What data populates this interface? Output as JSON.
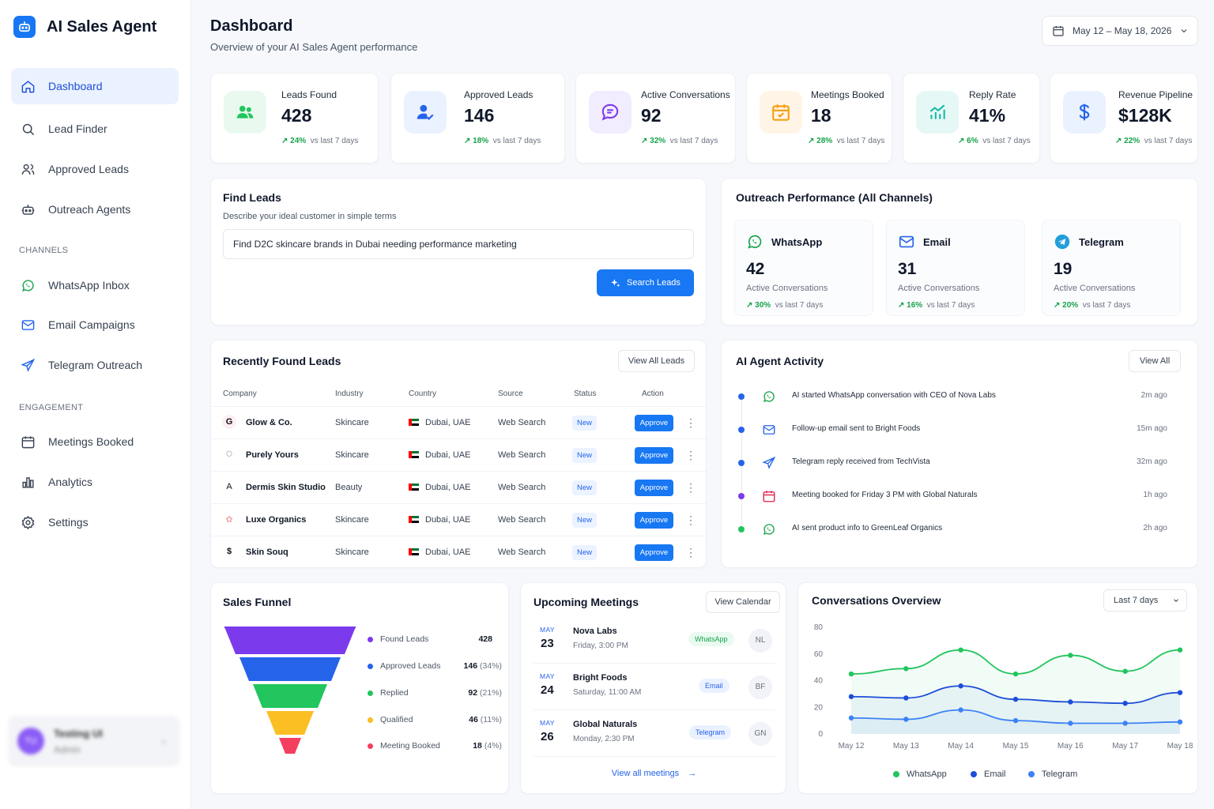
{
  "app": {
    "name": "AI Sales Agent"
  },
  "sidebar": {
    "items": [
      {
        "label": "Dashboard"
      },
      {
        "label": "Lead Finder"
      },
      {
        "label": "Approved Leads"
      },
      {
        "label": "Outreach Agents"
      }
    ],
    "channels_heading": "CHANNELS",
    "channels": [
      {
        "label": "WhatsApp Inbox"
      },
      {
        "label": "Email Campaigns"
      },
      {
        "label": "Telegram Outreach"
      }
    ],
    "engagement_heading": "ENGAGEMENT",
    "engagement": [
      {
        "label": "Meetings Booked"
      },
      {
        "label": "Analytics"
      },
      {
        "label": "Settings"
      }
    ],
    "user": {
      "initials": "TU",
      "name": "Testing UI",
      "role": "Admin"
    }
  },
  "header": {
    "title": "Dashboard",
    "subtitle": "Overview of your AI Sales Agent performance",
    "date_range": "May 12 – May 18, 2026"
  },
  "stats": [
    {
      "label": "Leads Found",
      "value": "428",
      "change": "24%",
      "compare": "vs last 7 days",
      "color": "#22c55e"
    },
    {
      "label": "Approved Leads",
      "value": "146",
      "change": "18%",
      "compare": "vs last 7 days",
      "color": "#2563eb"
    },
    {
      "label": "Active Conversations",
      "value": "92",
      "change": "32%",
      "compare": "vs last 7 days",
      "color": "#7c3aed"
    },
    {
      "label": "Meetings Booked",
      "value": "18",
      "change": "28%",
      "compare": "vs last 7 days",
      "color": "#f59e0b"
    },
    {
      "label": "Reply Rate",
      "value": "41%",
      "change": "6%",
      "compare": "vs last 7 days",
      "color": "#14b8a6"
    },
    {
      "label": "Revenue Pipeline",
      "value": "$128K",
      "change": "22%",
      "compare": "vs last 7 days",
      "color": "#2563eb"
    }
  ],
  "find_leads": {
    "title": "Find Leads",
    "subtitle": "Describe your ideal customer in simple terms",
    "query": "Find D2C skincare brands in Dubai needing performance marketing",
    "button": "Search Leads"
  },
  "outreach": {
    "title": "Outreach Performance (All Channels)",
    "channels": [
      {
        "name": "WhatsApp",
        "value": "42",
        "sub": "Active Conversations",
        "change": "30%",
        "compare": "vs last 7 days"
      },
      {
        "name": "Email",
        "value": "31",
        "sub": "Active Conversations",
        "change": "16%",
        "compare": "vs last 7 days"
      },
      {
        "name": "Telegram",
        "value": "19",
        "sub": "Active Conversations",
        "change": "20%",
        "compare": "vs last 7 days"
      }
    ]
  },
  "leads": {
    "title": "Recently Found Leads",
    "view_all": "View All Leads",
    "columns": [
      "Company",
      "Industry",
      "Country",
      "Source",
      "Status",
      "Action"
    ],
    "rows": [
      {
        "company": "Glow & Co.",
        "logo": "G",
        "industry": "Skincare",
        "country": "Dubai, UAE",
        "source": "Web Search",
        "status": "New",
        "action": "Approve"
      },
      {
        "company": "Purely Yours",
        "logo": "○",
        "industry": "Skincare",
        "country": "Dubai, UAE",
        "source": "Web Search",
        "status": "New",
        "action": "Approve"
      },
      {
        "company": "Dermis Skin Studio",
        "logo": "A",
        "industry": "Beauty",
        "country": "Dubai, UAE",
        "source": "Web Search",
        "status": "New",
        "action": "Approve"
      },
      {
        "company": "Luxe Organics",
        "logo": "✿",
        "industry": "Skincare",
        "country": "Dubai, UAE",
        "source": "Web Search",
        "status": "New",
        "action": "Approve"
      },
      {
        "company": "Skin Souq",
        "logo": "$",
        "industry": "Skincare",
        "country": "Dubai, UAE",
        "source": "Web Search",
        "status": "New",
        "action": "Approve"
      }
    ]
  },
  "activity": {
    "title": "AI Agent Activity",
    "view_all": "View All",
    "items": [
      {
        "text": "AI started WhatsApp conversation with CEO of Nova Labs",
        "time": "2m ago",
        "icon": "whatsapp-icon",
        "dot": "#2563eb"
      },
      {
        "text": "Follow-up email sent to Bright Foods",
        "time": "15m ago",
        "icon": "mail-icon",
        "dot": "#2563eb"
      },
      {
        "text": "Telegram reply received from TechVista",
        "time": "32m ago",
        "icon": "send-icon",
        "dot": "#2563eb"
      },
      {
        "text": "Meeting booked for Friday 3 PM with Global Naturals",
        "time": "1h ago",
        "icon": "calendar-icon",
        "dot": "#7c3aed"
      },
      {
        "text": "AI sent product info to GreenLeaf Organics",
        "time": "2h ago",
        "icon": "whatsapp-icon",
        "dot": "#22c55e"
      }
    ]
  },
  "funnel": {
    "title": "Sales Funnel",
    "stages": [
      {
        "name": "Found Leads",
        "value": "428",
        "pct": "",
        "fraction": 1.0,
        "color": "#7c3aed"
      },
      {
        "name": "Approved Leads",
        "value": "146",
        "pct": "(34%)",
        "fraction": 0.34,
        "color": "#2563eb"
      },
      {
        "name": "Replied",
        "value": "92",
        "pct": "(21%)",
        "fraction": 0.21,
        "color": "#22c55e"
      },
      {
        "name": "Qualified",
        "value": "46",
        "pct": "(11%)",
        "fraction": 0.11,
        "color": "#fbbf24"
      },
      {
        "name": "Meeting Booked",
        "value": "18",
        "pct": "(4%)",
        "fraction": 0.04,
        "color": "#f43f5e"
      }
    ]
  },
  "meetings": {
    "title": "Upcoming Meetings",
    "view_calendar": "View Calendar",
    "items": [
      {
        "month": "MAY",
        "day": "23",
        "name": "Nova Labs",
        "time": "Friday, 3:00 PM",
        "channel": "WhatsApp",
        "initials": "NL"
      },
      {
        "month": "MAY",
        "day": "24",
        "name": "Bright Foods",
        "time": "Saturday, 11:00 AM",
        "channel": "Email",
        "initials": "BF"
      },
      {
        "month": "MAY",
        "day": "26",
        "name": "Global Naturals",
        "time": "Monday, 2:30 PM",
        "channel": "Telegram",
        "initials": "GN"
      }
    ],
    "view_all": "View all meetings"
  },
  "conversations": {
    "title": "Conversations Overview",
    "range": "Last 7 days"
  },
  "chart_data": {
    "type": "line",
    "title": "Conversations Overview",
    "x": [
      "May 12",
      "May 13",
      "May 14",
      "May 15",
      "May 16",
      "May 17",
      "May 18"
    ],
    "yticks": [
      0,
      20,
      40,
      60,
      80
    ],
    "ylim": [
      0,
      80
    ],
    "grid": false,
    "legend": "bottom",
    "series": [
      {
        "name": "WhatsApp",
        "color": "#22c55e",
        "values": [
          45,
          49,
          63,
          45,
          59,
          47,
          63
        ]
      },
      {
        "name": "Email",
        "color": "#1d4ed8",
        "values": [
          28,
          27,
          36,
          26,
          24,
          23,
          31
        ]
      },
      {
        "name": "Telegram",
        "color": "#3b82f6",
        "values": [
          12,
          11,
          18,
          10,
          8,
          8,
          9
        ]
      }
    ]
  }
}
